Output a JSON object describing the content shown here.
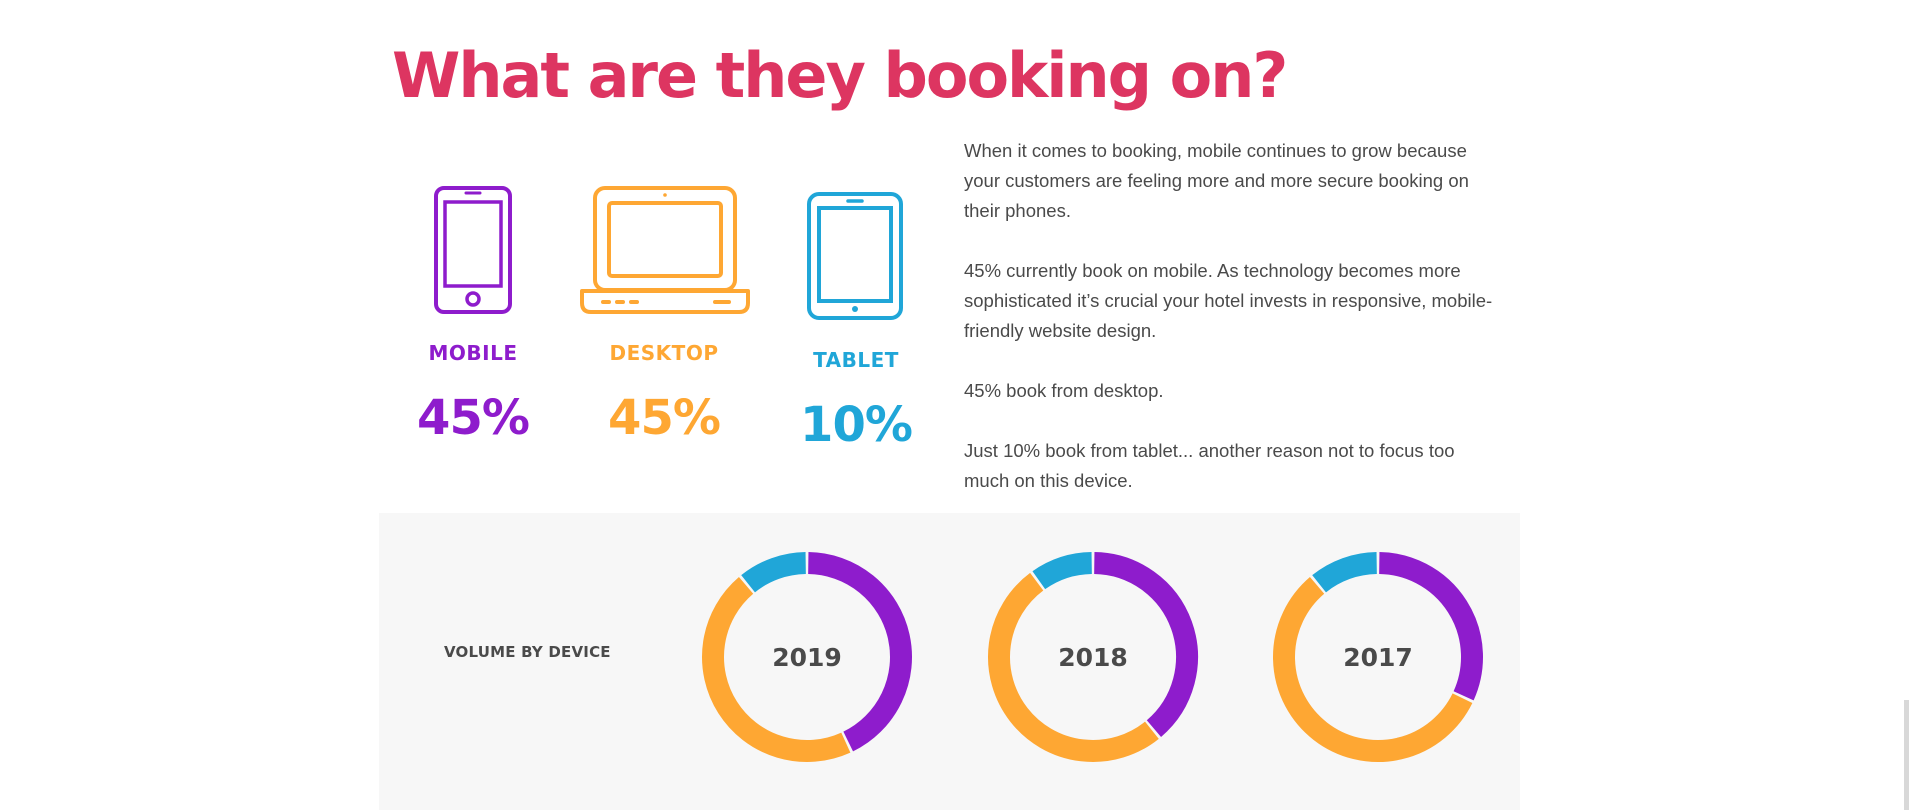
{
  "headline": "What are they booking on?",
  "colors": {
    "headline": "#dd3561",
    "mobile": "#8e1ccc",
    "desktop": "#fea733",
    "tablet": "#20a6d8",
    "panel_bg": "#f7f7f7",
    "text": "#4a4a4a"
  },
  "devices": [
    {
      "name": "MOBILE",
      "percent": "45%",
      "icon": "mobile-phone-icon"
    },
    {
      "name": "DESKTOP",
      "percent": "45%",
      "icon": "laptop-icon"
    },
    {
      "name": "TABLET",
      "percent": "10%",
      "icon": "tablet-icon"
    }
  ],
  "body": {
    "p1": "When it comes to booking, mobile continues to grow because your customers are feeling more and more secure booking on their phones.",
    "p2": "45% currently book on mobile. As technology becomes more sophisticated it’s crucial your hotel invests in responsive, mobile-friendly website design.",
    "p3": "45% book from desktop.",
    "p4": "Just 10% book from tablet... another reason not to focus too much on this device."
  },
  "panel_label": "VOLUME BY DEVICE",
  "chart_data": [
    {
      "type": "pie",
      "title": "2019",
      "categories": [
        "MOBILE",
        "DESKTOP",
        "TABLET"
      ],
      "values": [
        43,
        46,
        11
      ]
    },
    {
      "type": "pie",
      "title": "2018",
      "categories": [
        "MOBILE",
        "DESKTOP",
        "TABLET"
      ],
      "values": [
        39,
        51,
        10
      ]
    },
    {
      "type": "pie",
      "title": "2017",
      "categories": [
        "MOBILE",
        "DESKTOP",
        "TABLET"
      ],
      "values": [
        32,
        57,
        11
      ]
    }
  ]
}
